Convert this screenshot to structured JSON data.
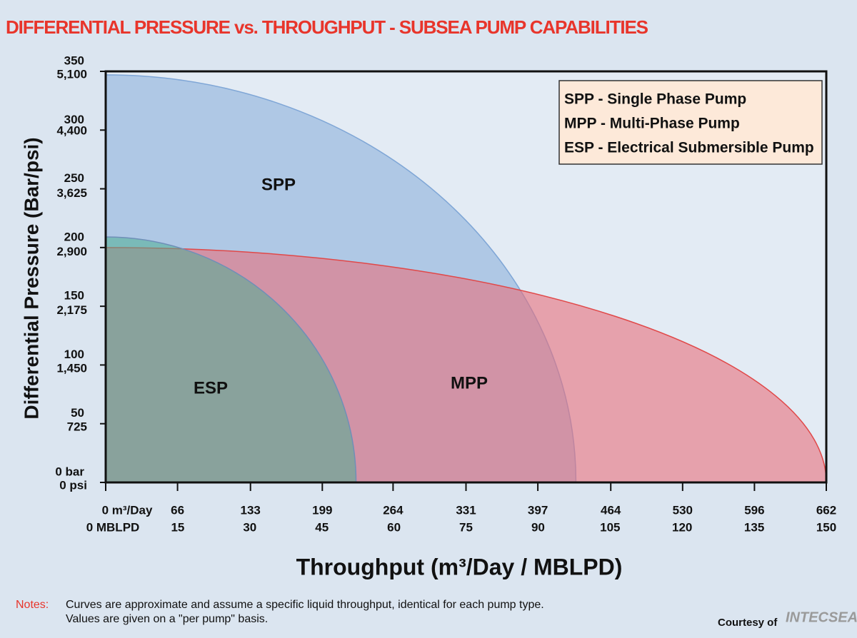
{
  "chart_data": {
    "type": "envelope",
    "title": "DIFFERENTIAL PRESSURE vs. THROUGHPUT - SUBSEA PUMP CAPABILITIES",
    "y_label": "Differential Pressure (Bar/psi)",
    "x_label": "Throughput (m³/Day / MBLPD)",
    "xlim": [
      0,
      662
    ],
    "xticks": [
      {
        "value": 0,
        "label": "0 m³/Day"
      },
      66,
      133,
      199,
      264,
      331,
      397,
      464,
      530,
      596,
      662
    ],
    "x2lim": [
      0,
      150
    ],
    "x2ticks": [
      {
        "value": 0,
        "label": "0 MBLPD"
      },
      15,
      30,
      45,
      60,
      75,
      90,
      105,
      120,
      135,
      150
    ],
    "ylim": [
      0,
      350
    ],
    "yticks": [
      {
        "value": 0,
        "label": "0 bar"
      },
      50,
      100,
      150,
      200,
      250,
      300,
      350
    ],
    "y2lim": [
      0,
      5100
    ],
    "y2ticks": [
      {
        "value": 0,
        "label": "0 psi"
      },
      {
        "value": 725,
        "label": "725"
      },
      {
        "value": 1450,
        "label": "1,450"
      },
      {
        "value": 2175,
        "label": "2,175"
      },
      {
        "value": 2900,
        "label": "2,900"
      },
      {
        "value": 3625,
        "label": "3,625"
      },
      {
        "value": 4400,
        "label": "4,400"
      },
      {
        "value": 5100,
        "label": "5,100"
      }
    ],
    "series": [
      {
        "name": "SPP",
        "color": "#a9c4e3",
        "stroke": "#7fa6d6",
        "max_throughput": 432,
        "max_pressure": 347
      },
      {
        "name": "MPP",
        "color": "#e8707c",
        "stroke": "#e04848",
        "max_throughput": 662,
        "max_pressure": 200
      },
      {
        "name": "ESP",
        "color": "#4fae94",
        "stroke": "#6f8fb8",
        "max_throughput": 230,
        "max_pressure": 209
      }
    ],
    "legend": [
      "SPP - Single Phase Pump",
      "MPP - Multi-Phase Pump",
      "ESP - Electrical Submersible Pump"
    ],
    "notes_label": "Notes:",
    "notes": [
      "Curves are approximate and assume a specific liquid throughput, identical for each pump type.",
      "Values are given on a \"per pump\" basis."
    ],
    "courtesy": "Courtesy of",
    "logo": "INTECSEA"
  }
}
